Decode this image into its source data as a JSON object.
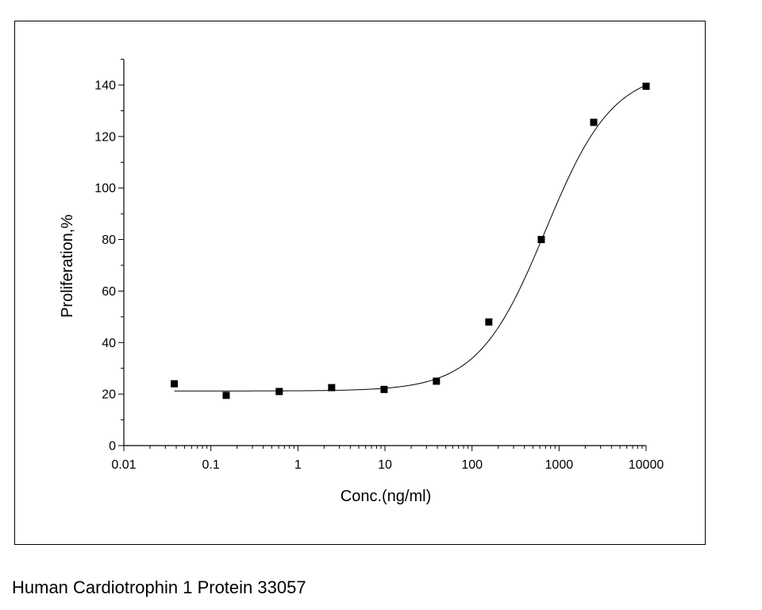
{
  "caption": "Human Cardiotrophin 1 Protein 33057",
  "colors": {
    "axis": "#000000",
    "marker": "#000000",
    "curve": "#000000"
  },
  "chart_data": {
    "type": "scatter",
    "title": "",
    "xlabel": "Conc.(ng/ml)",
    "ylabel": "Proliferation,%",
    "xscale": "log",
    "xlim": [
      0.01,
      10000
    ],
    "ylim": [
      0,
      150
    ],
    "grid": false,
    "legend": "none",
    "x_ticks": [
      {
        "value": 0.01,
        "label": "0.01"
      },
      {
        "value": 0.1,
        "label": "0.1"
      },
      {
        "value": 1,
        "label": "1"
      },
      {
        "value": 10,
        "label": "10"
      },
      {
        "value": 100,
        "label": "100"
      },
      {
        "value": 1000,
        "label": "1000"
      },
      {
        "value": 10000,
        "label": "10000"
      }
    ],
    "y_ticks": [
      {
        "value": 0,
        "label": "0"
      },
      {
        "value": 20,
        "label": "20"
      },
      {
        "value": 40,
        "label": "40"
      },
      {
        "value": 60,
        "label": "60"
      },
      {
        "value": 80,
        "label": "80"
      },
      {
        "value": 100,
        "label": "100"
      },
      {
        "value": 120,
        "label": "120"
      },
      {
        "value": 140,
        "label": "140"
      }
    ],
    "points": [
      {
        "x": 0.038,
        "y": 24
      },
      {
        "x": 0.15,
        "y": 19.5
      },
      {
        "x": 0.61,
        "y": 21
      },
      {
        "x": 2.44,
        "y": 22.5
      },
      {
        "x": 9.77,
        "y": 21.8
      },
      {
        "x": 39,
        "y": 25
      },
      {
        "x": 156,
        "y": 48
      },
      {
        "x": 625,
        "y": 80
      },
      {
        "x": 2500,
        "y": 125.5
      },
      {
        "x": 10000,
        "y": 139.5
      }
    ],
    "fit": {
      "model": "logistic",
      "bottom": 21.2,
      "top": 146,
      "ec50": 700,
      "hill": 1.12,
      "x_range": [
        0.038,
        10000
      ]
    }
  }
}
